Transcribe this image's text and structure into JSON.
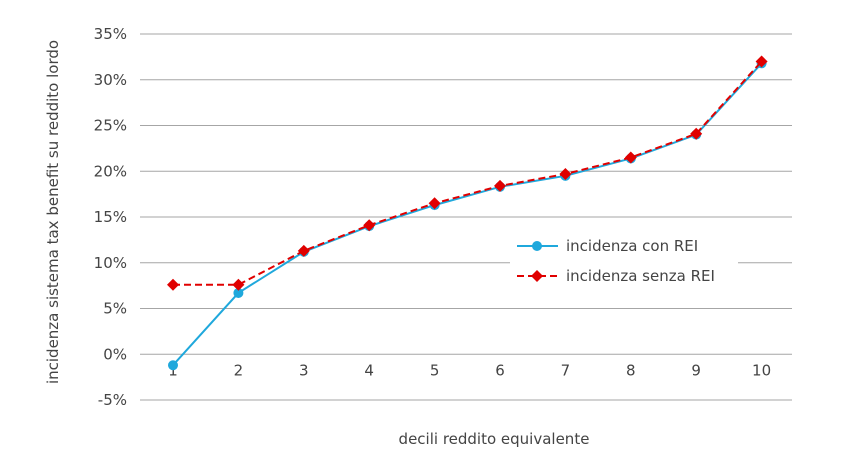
{
  "chart_data": {
    "type": "line",
    "xlabel": "decili reddito equivalente",
    "ylabel": "incidenza sistema tax benefit su reddito lordo",
    "categories": [
      "1",
      "2",
      "3",
      "4",
      "5",
      "6",
      "7",
      "8",
      "9",
      "10"
    ],
    "y_ticks": [
      "-5%",
      "0%",
      "5%",
      "10%",
      "15%",
      "20%",
      "25%",
      "30%",
      "35%"
    ],
    "ylim": [
      -5,
      35
    ],
    "grid": true,
    "legend_position": "right",
    "series": [
      {
        "name": "incidenza con REI",
        "color": "#1fa8dc",
        "marker": "circle",
        "line_style": "solid",
        "values": [
          -1.2,
          6.7,
          11.2,
          14.0,
          16.3,
          18.3,
          19.5,
          21.4,
          24.0,
          31.8
        ]
      },
      {
        "name": "incidenza senza REI",
        "color": "#e00000",
        "marker": "diamond",
        "line_style": "dashed",
        "values": [
          7.6,
          7.6,
          11.3,
          14.1,
          16.5,
          18.4,
          19.7,
          21.5,
          24.1,
          32.0
        ]
      }
    ]
  }
}
